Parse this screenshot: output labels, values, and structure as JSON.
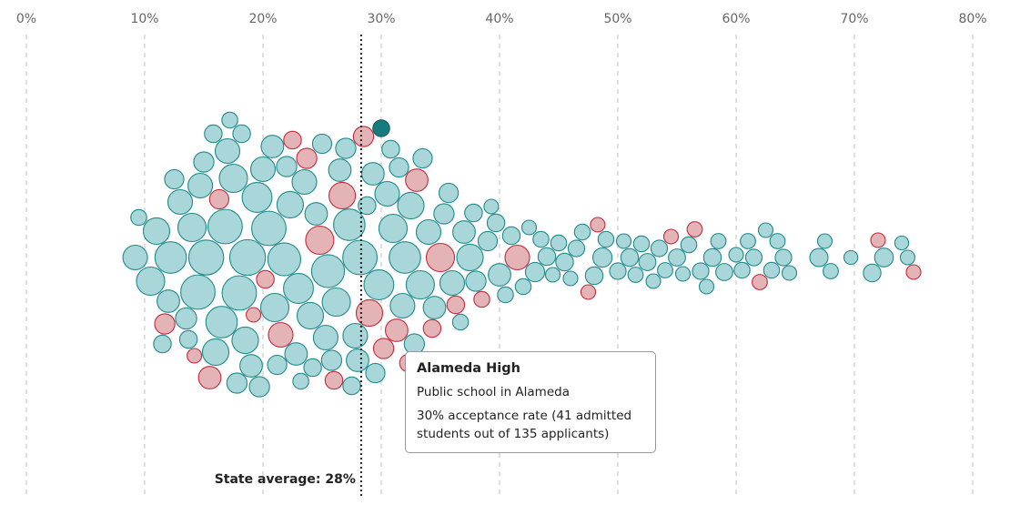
{
  "chart_data": {
    "type": "scatter",
    "subtype": "beeswarm",
    "x_ticks": [
      "0%",
      "10%",
      "20%",
      "30%",
      "40%",
      "50%",
      "60%",
      "70%",
      "80%"
    ],
    "xlim": [
      0,
      80
    ],
    "grid": "vertical dashed",
    "colors": {
      "teal_fill": "#a9d6d8",
      "teal_stroke": "#1e8a8c",
      "red_fill": "#e3b3b6",
      "red_stroke": "#c22a3c",
      "highlight": "#167b7d"
    },
    "reference_line": {
      "value": 28.3,
      "label": "State average: 28%"
    },
    "bubbles_fields": [
      "acceptance_rate",
      "applicants",
      "red"
    ],
    "bubbles": [
      [
        9.2,
        300,
        0
      ],
      [
        9.5,
        120,
        0
      ],
      [
        10.5,
        400,
        0
      ],
      [
        11,
        350,
        0
      ],
      [
        11.5,
        150,
        0
      ],
      [
        11.7,
        200,
        1
      ],
      [
        12,
        250,
        0
      ],
      [
        12.2,
        500,
        0
      ],
      [
        12.5,
        180,
        0
      ],
      [
        13,
        300,
        0
      ],
      [
        13.5,
        220,
        0
      ],
      [
        13.7,
        150,
        0
      ],
      [
        14,
        400,
        0
      ],
      [
        14.2,
        100,
        1
      ],
      [
        14.5,
        600,
        0
      ],
      [
        14.7,
        300,
        0
      ],
      [
        15,
        200,
        0
      ],
      [
        15.2,
        620,
        0
      ],
      [
        15.5,
        250,
        1
      ],
      [
        15.8,
        150,
        0
      ],
      [
        16,
        350,
        0
      ],
      [
        16.3,
        180,
        1
      ],
      [
        16.5,
        500,
        0
      ],
      [
        16.8,
        600,
        0
      ],
      [
        17,
        300,
        0
      ],
      [
        17.2,
        120,
        0
      ],
      [
        17.5,
        400,
        0
      ],
      [
        17.8,
        200,
        0
      ],
      [
        18,
        600,
        0
      ],
      [
        18.2,
        150,
        0
      ],
      [
        18.5,
        350,
        0
      ],
      [
        18.7,
        650,
        0
      ],
      [
        19,
        250,
        0
      ],
      [
        19.2,
        100,
        1
      ],
      [
        19.5,
        450,
        0
      ],
      [
        19.7,
        200,
        0
      ],
      [
        20,
        300,
        0
      ],
      [
        20.2,
        150,
        1
      ],
      [
        20.5,
        600,
        0
      ],
      [
        20.8,
        250,
        0
      ],
      [
        21,
        400,
        0
      ],
      [
        21.2,
        180,
        0
      ],
      [
        21.5,
        300,
        1
      ],
      [
        21.8,
        550,
        0
      ],
      [
        22,
        200,
        0
      ],
      [
        22.3,
        350,
        0
      ],
      [
        22.5,
        150,
        1
      ],
      [
        22.8,
        250,
        0
      ],
      [
        23,
        450,
        0
      ],
      [
        23.2,
        120,
        0
      ],
      [
        23.5,
        300,
        0
      ],
      [
        23.7,
        200,
        1
      ],
      [
        24,
        350,
        0
      ],
      [
        24.2,
        150,
        0
      ],
      [
        24.5,
        250,
        0
      ],
      [
        24.8,
        400,
        1
      ],
      [
        25,
        180,
        0
      ],
      [
        25.3,
        300,
        0
      ],
      [
        25.5,
        550,
        0
      ],
      [
        25.8,
        200,
        0
      ],
      [
        26,
        150,
        1
      ],
      [
        26.2,
        400,
        0
      ],
      [
        26.5,
        250,
        0
      ],
      [
        26.7,
        350,
        1
      ],
      [
        27,
        200,
        0
      ],
      [
        27.3,
        500,
        0
      ],
      [
        27.5,
        150,
        0
      ],
      [
        27.8,
        300,
        0
      ],
      [
        28,
        250,
        0
      ],
      [
        28.2,
        600,
        0
      ],
      [
        28.5,
        200,
        1
      ],
      [
        28.8,
        150,
        0
      ],
      [
        29,
        350,
        1
      ],
      [
        29.3,
        250,
        0
      ],
      [
        29.5,
        180,
        0
      ],
      [
        29.8,
        450,
        0
      ],
      [
        30.2,
        200,
        1
      ],
      [
        30.5,
        300,
        0
      ],
      [
        30.8,
        150,
        0
      ],
      [
        31,
        400,
        0
      ],
      [
        31.3,
        250,
        1
      ],
      [
        31.5,
        180,
        0
      ],
      [
        31.8,
        300,
        0
      ],
      [
        32,
        500,
        0
      ],
      [
        32.3,
        150,
        1
      ],
      [
        32.5,
        350,
        0
      ],
      [
        32.8,
        200,
        0
      ],
      [
        33,
        250,
        1
      ],
      [
        33.3,
        400,
        0
      ],
      [
        33.5,
        180,
        0
      ],
      [
        34,
        300,
        0
      ],
      [
        34.3,
        150,
        1
      ],
      [
        34.5,
        250,
        0
      ],
      [
        35,
        400,
        1
      ],
      [
        35.3,
        200,
        0
      ],
      [
        35.7,
        180,
        0
      ],
      [
        36,
        300,
        0
      ],
      [
        36.3,
        150,
        1
      ],
      [
        36.7,
        120,
        0
      ],
      [
        37,
        250,
        0
      ],
      [
        37.5,
        350,
        0
      ],
      [
        37.8,
        150,
        0
      ],
      [
        38,
        200,
        0
      ],
      [
        38.5,
        120,
        1
      ],
      [
        39,
        180,
        0
      ],
      [
        39.3,
        100,
        0
      ],
      [
        39.7,
        150,
        0
      ],
      [
        40,
        250,
        0
      ],
      [
        40.5,
        120,
        0
      ],
      [
        41,
        150,
        0
      ],
      [
        41.5,
        300,
        1
      ],
      [
        42,
        120,
        0
      ],
      [
        42.5,
        100,
        0
      ],
      [
        43,
        180,
        0
      ],
      [
        43.5,
        120,
        0
      ],
      [
        44,
        150,
        0
      ],
      [
        44.5,
        100,
        0
      ],
      [
        45,
        120,
        0
      ],
      [
        45.5,
        150,
        0
      ],
      [
        46,
        100,
        0
      ],
      [
        46.5,
        130,
        0
      ],
      [
        47,
        120,
        0
      ],
      [
        47.5,
        100,
        1
      ],
      [
        48,
        150,
        0
      ],
      [
        48.3,
        100,
        1
      ],
      [
        48.7,
        180,
        0
      ],
      [
        49,
        120,
        0
      ],
      [
        50,
        130,
        0
      ],
      [
        50.5,
        100,
        0
      ],
      [
        51,
        150,
        0
      ],
      [
        51.5,
        110,
        0
      ],
      [
        52,
        120,
        0
      ],
      [
        52.5,
        140,
        0
      ],
      [
        53,
        100,
        0
      ],
      [
        53.5,
        130,
        0
      ],
      [
        54,
        110,
        0
      ],
      [
        54.5,
        100,
        1
      ],
      [
        55,
        140,
        0
      ],
      [
        55.5,
        100,
        0
      ],
      [
        56,
        120,
        0
      ],
      [
        56.5,
        110,
        1
      ],
      [
        57,
        130,
        0
      ],
      [
        57.5,
        100,
        0
      ],
      [
        58,
        150,
        0
      ],
      [
        58.5,
        110,
        0
      ],
      [
        59,
        140,
        0
      ],
      [
        60,
        100,
        0
      ],
      [
        60.5,
        120,
        0
      ],
      [
        61,
        110,
        0
      ],
      [
        61.5,
        130,
        0
      ],
      [
        62,
        110,
        1
      ],
      [
        62.5,
        100,
        0
      ],
      [
        63,
        120,
        0
      ],
      [
        63.5,
        110,
        0
      ],
      [
        64,
        130,
        0
      ],
      [
        64.5,
        100,
        0
      ],
      [
        67,
        160,
        0
      ],
      [
        67.5,
        100,
        0
      ],
      [
        68,
        110,
        0
      ],
      [
        69.7,
        90,
        0
      ],
      [
        71.5,
        150,
        0
      ],
      [
        72,
        100,
        1
      ],
      [
        72.5,
        170,
        0
      ],
      [
        74,
        90,
        0
      ],
      [
        74.5,
        100,
        0
      ],
      [
        75,
        100,
        1
      ]
    ],
    "highlight": {
      "school": "Alameda High",
      "acceptance_rate": 30,
      "admitted": 41,
      "applicants": 135
    }
  },
  "tooltip": {
    "title": "Alameda High",
    "subtitle": "Public school in Alameda",
    "line1": "30% acceptance rate (41 admitted",
    "line2": "students out of 135 applicants)"
  }
}
